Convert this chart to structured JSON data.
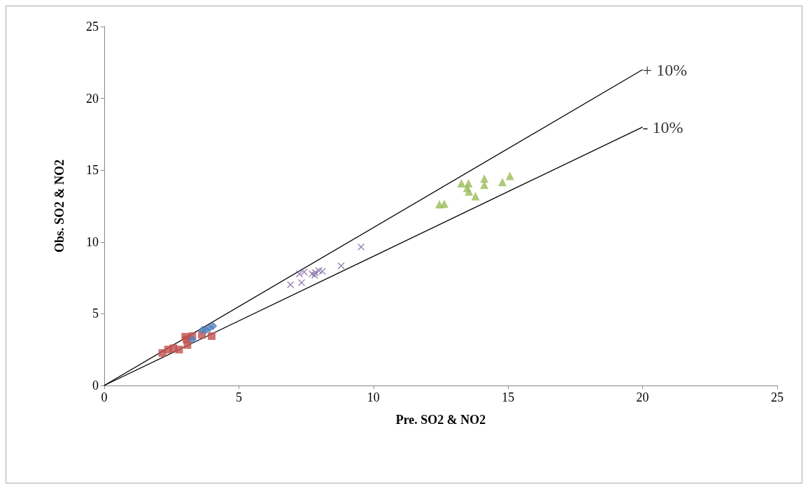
{
  "chart_data": {
    "type": "scatter",
    "xlabel": "Pre. SO2 & NO2",
    "ylabel": "Obs. SO2 & NO2",
    "xlim": [
      0,
      25
    ],
    "xticks": [
      0,
      5,
      10,
      15,
      20,
      25
    ],
    "ylim": [
      0,
      25
    ],
    "yticks": [
      0,
      5,
      10,
      15,
      20,
      25
    ],
    "series": [
      {
        "color": "#4f81bd",
        "marker": "diamond",
        "x": [
          3.27,
          3.65,
          3.78,
          3.91,
          4.04
        ],
        "values": [
          3.2,
          3.86,
          3.86,
          4.0,
          4.14
        ]
      },
      {
        "color": "#c0504d",
        "marker": "square",
        "x": [
          2.16,
          2.37,
          2.57,
          2.78,
          3.01,
          3.09,
          3.06,
          3.27,
          3.63,
          3.99
        ],
        "values": [
          2.26,
          2.5,
          2.59,
          2.5,
          3.39,
          2.82,
          3.2,
          3.44,
          3.53,
          3.44
        ]
      },
      {
        "color": "#8064a2",
        "marker": "cross",
        "x": [
          6.92,
          7.33,
          7.25,
          7.43,
          7.72,
          7.82,
          7.84,
          7.97,
          8.1,
          8.8,
          9.54
        ],
        "values": [
          7.02,
          7.16,
          7.77,
          7.91,
          7.77,
          7.67,
          7.86,
          8.0,
          7.95,
          8.33,
          9.65
        ]
      },
      {
        "color": "#9bbb59",
        "marker": "triangle",
        "x": [
          12.45,
          12.63,
          13.27,
          13.53,
          13.48,
          13.55,
          13.79,
          14.12,
          14.12,
          14.79,
          15.07
        ],
        "values": [
          12.62,
          12.66,
          14.08,
          14.08,
          13.75,
          13.51,
          13.18,
          14.41,
          13.98,
          14.17,
          14.59
        ]
      },
      {
        "type": "line",
        "color": "#000000",
        "marker": "none",
        "x": [
          0,
          20
        ],
        "values": [
          0,
          22
        ]
      },
      {
        "type": "line",
        "color": "#000000",
        "marker": "none",
        "x": [
          0,
          20
        ],
        "values": [
          0,
          18
        ]
      }
    ],
    "annotations": [
      {
        "text": "+ 10%",
        "x": 20,
        "y": 22
      },
      {
        "text": "- 10%",
        "x": 20,
        "y": 18
      }
    ]
  }
}
